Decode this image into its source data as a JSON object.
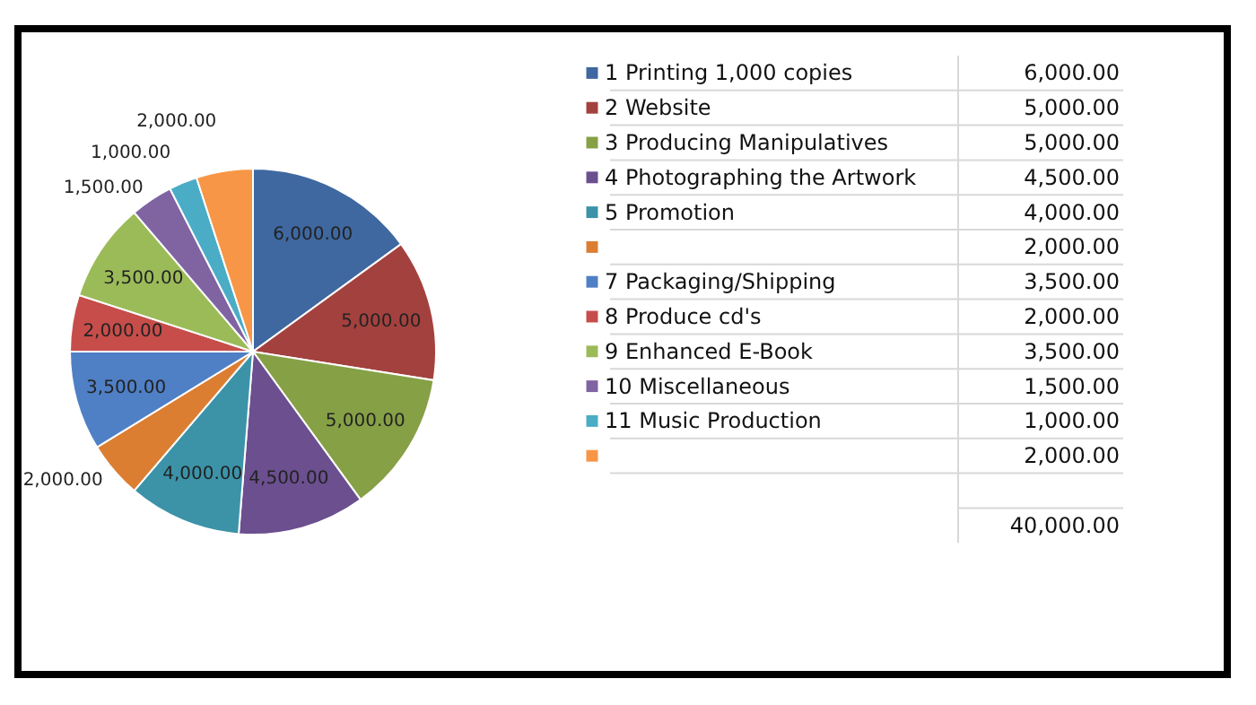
{
  "chart_data": {
    "type": "pie",
    "categories": [
      "1 Printing 1,000 copies",
      "2 Website",
      "3 Producing Manipulatives",
      "4 Photographing the Artwork",
      "5 Promotion",
      null,
      "7 Packaging/Shipping",
      "8 Produce cd's",
      "9 Enhanced E-Book",
      "10 Miscellaneous",
      "11 Music Production",
      null
    ],
    "values": [
      6000,
      5000,
      5000,
      4500,
      4000,
      2000,
      3500,
      2000,
      3500,
      1500,
      1000,
      2000
    ],
    "value_labels": [
      "6,000.00",
      "5,000.00",
      "5,000.00",
      "4,500.00",
      "4,000.00",
      "2,000.00",
      "3,500.00",
      "2,000.00",
      "3,500.00",
      "1,500.00",
      "1,000.00",
      "2,000.00"
    ],
    "colors": [
      "#3f68a0",
      "#a3413e",
      "#86a046",
      "#6b4f8f",
      "#3c93a8",
      "#db7e32",
      "#4f7fc5",
      "#c74d4a",
      "#9bbb59",
      "#8064a2",
      "#4bacc6",
      "#f79646"
    ],
    "legend": "right",
    "annotations": [
      "40,000.00"
    ]
  }
}
